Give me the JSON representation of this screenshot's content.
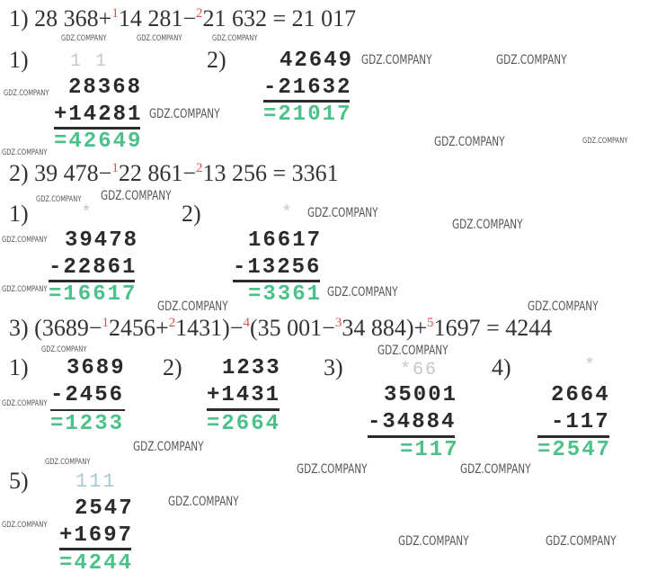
{
  "equations": [
    {
      "parts": [
        {
          "t": "1) 28 368+"
        },
        {
          "s": "1"
        },
        {
          "t": "14 281−"
        },
        {
          "s": "2"
        },
        {
          "t": "21 632 = 21 017"
        }
      ]
    },
    {
      "parts": [
        {
          "t": "2) 39 478−"
        },
        {
          "s": "1"
        },
        {
          "t": "22 861−"
        },
        {
          "s": "2"
        },
        {
          "t": "13 256 = 3361"
        }
      ]
    },
    {
      "parts": [
        {
          "t": "3) (3689−"
        },
        {
          "s": "1"
        },
        {
          "t": "2456+"
        },
        {
          "s": "2"
        },
        {
          "t": "1431)−"
        },
        {
          "s": "4"
        },
        {
          "t": "(35 001−"
        },
        {
          "s": "3"
        },
        {
          "t": "34 884)+"
        },
        {
          "s": "5"
        },
        {
          "t": "1697 = 4244"
        }
      ]
    }
  ],
  "p1": {
    "c1": {
      "label": "1)",
      "carry": "1 1",
      "a": "28368",
      "b": "+14281",
      "r": "=42649"
    },
    "c2": {
      "label": "2)",
      "a": "42649",
      "b": "-21632",
      "r": "=21017"
    }
  },
  "p2": {
    "c1": {
      "label": "1)",
      "carry": "*",
      "a": "39478",
      "b": "-22861",
      "r": "=16617"
    },
    "c2": {
      "label": "2)",
      "carry": "*",
      "a": "16617",
      "b": "-13256",
      "r": "=3361"
    }
  },
  "p3": {
    "c1": {
      "label": "1)",
      "a": "3689",
      "b": "-2456",
      "r": "=1233"
    },
    "c2": {
      "label": "2)",
      "a": "1233",
      "b": "+1431",
      "r": "=2664"
    },
    "c3": {
      "label": "3)",
      "carry": "*66",
      "a": "35001",
      "b": "-34884",
      "r": "=117"
    },
    "c4": {
      "label": "4)",
      "carry": "*",
      "a": "2664",
      "b": "-117",
      "r": "=2547"
    },
    "c5": {
      "label": "5)",
      "carry": "111",
      "a": "2547",
      "b": "+1697",
      "r": "=4244"
    }
  },
  "watermark": "GDZ.COMPANY",
  "colors": {
    "result": "#4cc28a",
    "carry_mark": "#d9534f"
  }
}
